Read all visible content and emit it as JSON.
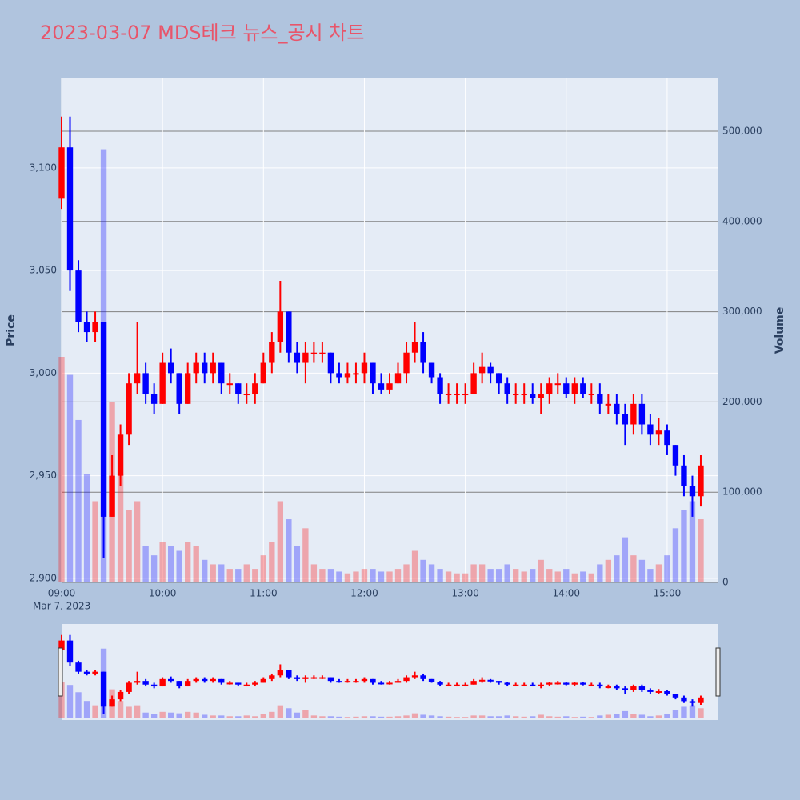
{
  "chart_data": {
    "type": "candlestick",
    "title": "2023-03-07 MDS테크 뉴스_공시 차트",
    "y_title": "Price",
    "y2_title": "Volume",
    "x_date": "Mar 7, 2023",
    "increasing_color": "#ff0000",
    "decreasing_color": "#0000ff",
    "x": [
      "09:00",
      "09:05",
      "09:10",
      "09:15",
      "09:20",
      "09:25",
      "09:30",
      "09:35",
      "09:40",
      "09:45",
      "09:50",
      "09:55",
      "10:00",
      "10:05",
      "10:10",
      "10:15",
      "10:20",
      "10:25",
      "10:30",
      "10:35",
      "10:40",
      "10:45",
      "10:50",
      "10:55",
      "11:00",
      "11:05",
      "11:10",
      "11:15",
      "11:20",
      "11:25",
      "11:30",
      "11:35",
      "11:40",
      "11:45",
      "11:50",
      "11:55",
      "12:00",
      "12:05",
      "12:10",
      "12:15",
      "12:20",
      "12:25",
      "12:30",
      "12:35",
      "12:40",
      "12:45",
      "12:50",
      "12:55",
      "13:00",
      "13:05",
      "13:10",
      "13:15",
      "13:20",
      "13:25",
      "13:30",
      "13:35",
      "13:40",
      "13:45",
      "13:50",
      "13:55",
      "14:00",
      "14:05",
      "14:10",
      "14:15",
      "14:20",
      "14:25",
      "14:30",
      "14:35",
      "14:40",
      "14:45",
      "14:50",
      "14:55",
      "15:00",
      "15:05",
      "15:10",
      "15:15",
      "15:20"
    ],
    "open": [
      3085,
      3110,
      3050,
      3025,
      3020,
      3025,
      2930,
      2950,
      2970,
      2995,
      3000,
      2990,
      2985,
      3005,
      3000,
      2985,
      3000,
      3005,
      3000,
      3005,
      2995,
      2995,
      2990,
      2990,
      2995,
      3005,
      3015,
      3030,
      3010,
      3005,
      3010,
      3010,
      3010,
      3000,
      2998,
      3000,
      3000,
      3005,
      2995,
      2992,
      2995,
      3000,
      3010,
      3015,
      3005,
      2998,
      2990,
      2990,
      2990,
      2990,
      3000,
      3003,
      3000,
      2995,
      2990,
      2990,
      2990,
      2988,
      2990,
      2995,
      2995,
      2990,
      2995,
      2990,
      2990,
      2985,
      2985,
      2980,
      2975,
      2985,
      2975,
      2970,
      2972,
      2965,
      2955,
      2945,
      2940
    ],
    "high": [
      3125,
      3125,
      3055,
      3030,
      3030,
      3025,
      2960,
      2975,
      3000,
      3025,
      3005,
      2995,
      3010,
      3012,
      3000,
      3005,
      3010,
      3010,
      3010,
      3005,
      3000,
      2995,
      2995,
      3000,
      3010,
      3020,
      3045,
      3030,
      3015,
      3015,
      3015,
      3015,
      3010,
      3005,
      3005,
      3005,
      3010,
      3005,
      3000,
      3000,
      3005,
      3015,
      3025,
      3020,
      3005,
      3000,
      2995,
      2995,
      2995,
      3005,
      3010,
      3005,
      3000,
      2998,
      2995,
      2995,
      2995,
      2995,
      2998,
      3000,
      2998,
      2998,
      2998,
      2995,
      2995,
      2990,
      2990,
      2985,
      2990,
      2990,
      2980,
      2978,
      2975,
      2965,
      2960,
      2950,
      2960
    ],
    "low": [
      3080,
      3040,
      3020,
      3015,
      3015,
      2910,
      2930,
      2945,
      2965,
      2990,
      2985,
      2980,
      2985,
      2995,
      2980,
      2985,
      2995,
      2995,
      2995,
      2990,
      2990,
      2985,
      2985,
      2985,
      2995,
      3000,
      3010,
      3005,
      3000,
      2995,
      3005,
      3005,
      2995,
      2995,
      2995,
      2995,
      2995,
      2990,
      2990,
      2990,
      2995,
      2995,
      3005,
      3000,
      2995,
      2985,
      2985,
      2985,
      2985,
      2990,
      2995,
      2995,
      2990,
      2985,
      2985,
      2985,
      2985,
      2980,
      2985,
      2990,
      2988,
      2985,
      2988,
      2985,
      2980,
      2980,
      2975,
      2965,
      2970,
      2970,
      2965,
      2965,
      2960,
      2950,
      2940,
      2930,
      2935
    ],
    "close": [
      3110,
      3050,
      3025,
      3020,
      3025,
      2930,
      2950,
      2970,
      2995,
      3000,
      2990,
      2985,
      3005,
      3000,
      2985,
      3000,
      3005,
      3000,
      3005,
      2995,
      2995,
      2990,
      2990,
      2995,
      3005,
      3015,
      3030,
      3010,
      3005,
      3010,
      3010,
      3010,
      3000,
      2998,
      3000,
      3000,
      3005,
      2995,
      2992,
      2995,
      3000,
      3010,
      3015,
      3005,
      2998,
      2990,
      2990,
      2990,
      2990,
      3000,
      3003,
      3000,
      2995,
      2990,
      2990,
      2990,
      2988,
      2990,
      2995,
      2995,
      2990,
      2995,
      2990,
      2990,
      2985,
      2985,
      2980,
      2975,
      2985,
      2975,
      2970,
      2972,
      2965,
      2955,
      2945,
      2940,
      2955
    ],
    "volume": [
      250000,
      230000,
      180000,
      120000,
      90000,
      480000,
      200000,
      120000,
      80000,
      90000,
      40000,
      30000,
      45000,
      40000,
      35000,
      45000,
      40000,
      25000,
      20000,
      20000,
      15000,
      15000,
      20000,
      15000,
      30000,
      45000,
      90000,
      70000,
      40000,
      60000,
      20000,
      15000,
      15000,
      12000,
      10000,
      12000,
      15000,
      15000,
      12000,
      12000,
      15000,
      20000,
      35000,
      25000,
      20000,
      15000,
      12000,
      10000,
      10000,
      20000,
      20000,
      15000,
      15000,
      20000,
      15000,
      12000,
      15000,
      25000,
      15000,
      12000,
      15000,
      10000,
      12000,
      10000,
      20000,
      25000,
      30000,
      50000,
      30000,
      25000,
      15000,
      20000,
      30000,
      60000,
      80000,
      90000,
      70000
    ],
    "xlim": [
      "09:00",
      "15:30"
    ],
    "xticks": [
      "09:00",
      "10:00",
      "11:00",
      "12:00",
      "13:00",
      "14:00",
      "15:00"
    ],
    "ylim": [
      2898,
      3144
    ],
    "yticks": [
      {
        "value": 2900,
        "label": "2,900"
      },
      {
        "value": 2950,
        "label": "2,950"
      },
      {
        "value": 3000,
        "label": "3,000"
      },
      {
        "value": 3050,
        "label": "3,050"
      },
      {
        "value": 3100,
        "label": "3,100"
      }
    ],
    "y2lim": [
      0,
      559400
    ],
    "y2ticks": [
      0,
      {
        "value": 100000,
        "label": "100,000"
      },
      {
        "value": 200000,
        "label": "200,000"
      },
      {
        "value": 300000,
        "label": "300,000"
      },
      {
        "value": 400000,
        "label": "400,000"
      },
      {
        "value": 500000,
        "label": "500,000"
      }
    ]
  }
}
